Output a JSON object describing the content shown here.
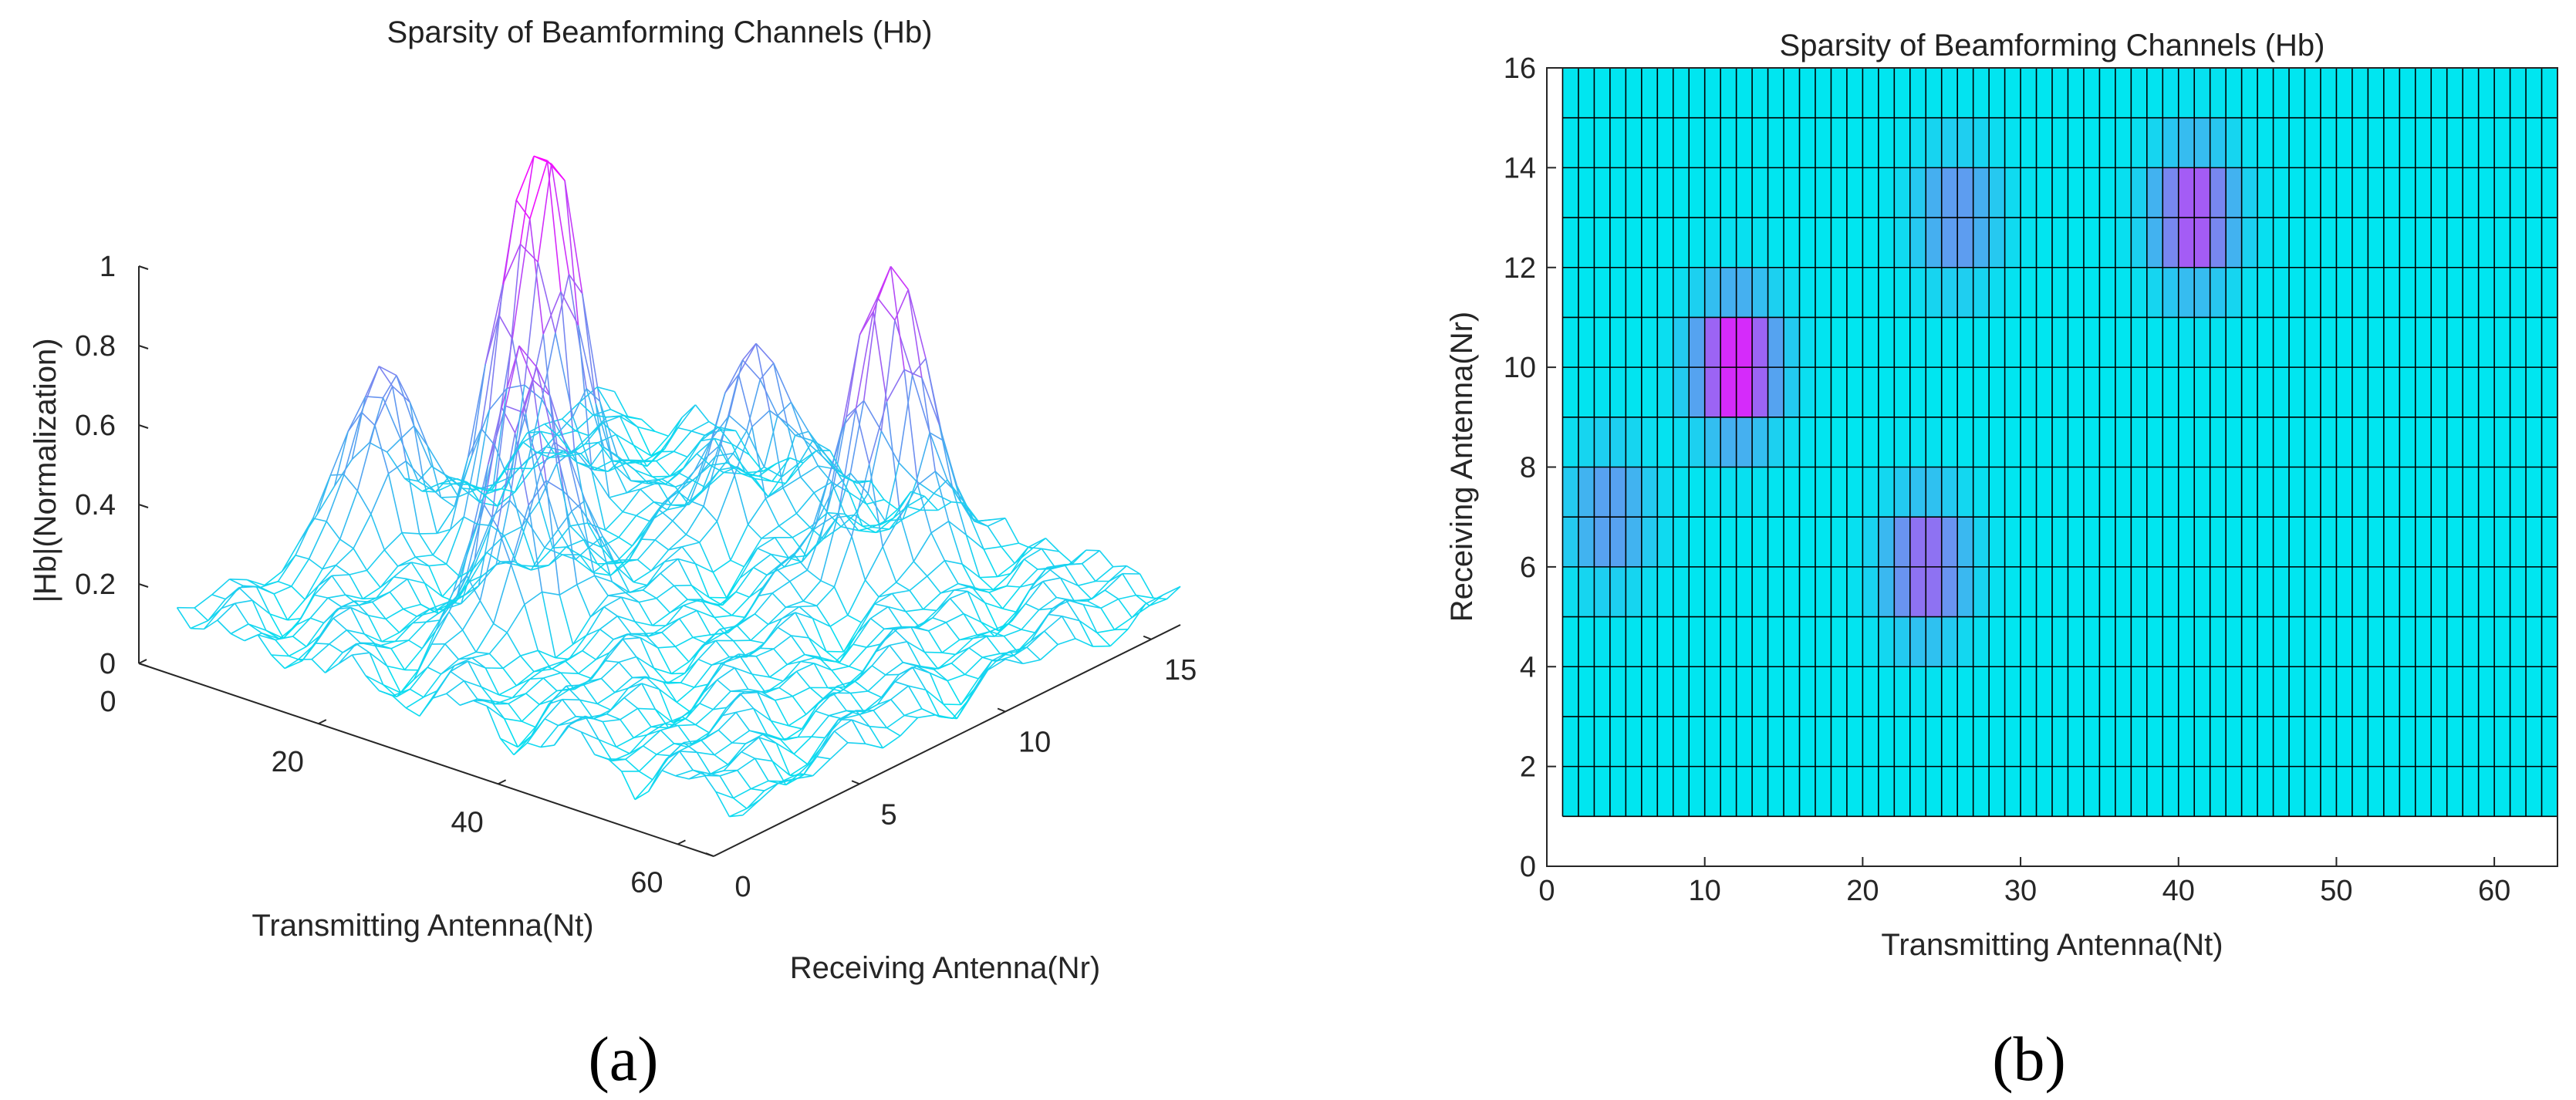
{
  "panels": {
    "a": {
      "caption": "(a)"
    },
    "b": {
      "caption": "(b)"
    }
  },
  "colors": {
    "low": "#00e6f0",
    "mid": "#7b85f0",
    "high": "#ff00ff",
    "grid_edge": "#000000"
  },
  "chart_data": [
    {
      "type": "surface",
      "style": "wireframe mesh",
      "title": "Sparsity of Beamforming Channels (Hb)",
      "xlabel": "Transmitting Antenna(Nt)",
      "ylabel": "Receiving Antenna(Nr)",
      "zlabel": "|Hb|(Normalization)",
      "xlim": [
        0,
        64
      ],
      "ylim": [
        0,
        16
      ],
      "zlim": [
        0,
        1
      ],
      "x_ticks": [
        "0",
        "20",
        "40",
        "60"
      ],
      "y_ticks": [
        "0",
        "5",
        "10",
        "15"
      ],
      "z_ticks": [
        "0",
        "0.2",
        "0.4",
        "0.6",
        "0.8",
        "1"
      ],
      "peaks": [
        {
          "nt": 12,
          "nr": 10,
          "value": 1.0
        },
        {
          "nt": 24,
          "nr": 6,
          "value": 0.68
        },
        {
          "nt": 41,
          "nr": 13,
          "value": 0.78
        },
        {
          "nt": 4,
          "nr": 7,
          "value": 0.42
        },
        {
          "nt": 26,
          "nr": 13,
          "value": 0.45
        }
      ],
      "noise_floor": 0.05,
      "colormap": "cool"
    },
    {
      "type": "heatmap",
      "title": "Sparsity of Beamforming Channels (Hb)",
      "xlabel": "Transmitting Antenna(Nt)",
      "ylabel": "Receiving Antenna(Nr)",
      "xlim": [
        0,
        64
      ],
      "ylim": [
        0,
        16
      ],
      "x_ticks": [
        "0",
        "10",
        "20",
        "30",
        "40",
        "50",
        "60"
      ],
      "y_ticks": [
        "0",
        "2",
        "4",
        "6",
        "8",
        "10",
        "12",
        "14",
        "16"
      ],
      "grid_nt": [
        1,
        64
      ],
      "grid_nr": [
        1,
        16
      ],
      "peaks": [
        {
          "nt": 12,
          "nr": 10,
          "value": 1.0
        },
        {
          "nt": 24,
          "nr": 6,
          "value": 0.68
        },
        {
          "nt": 41,
          "nr": 13,
          "value": 0.78
        },
        {
          "nt": 4,
          "nr": 7,
          "value": 0.42
        },
        {
          "nt": 26,
          "nr": 13,
          "value": 0.45
        }
      ],
      "colormap": "cool",
      "grid": true
    }
  ]
}
